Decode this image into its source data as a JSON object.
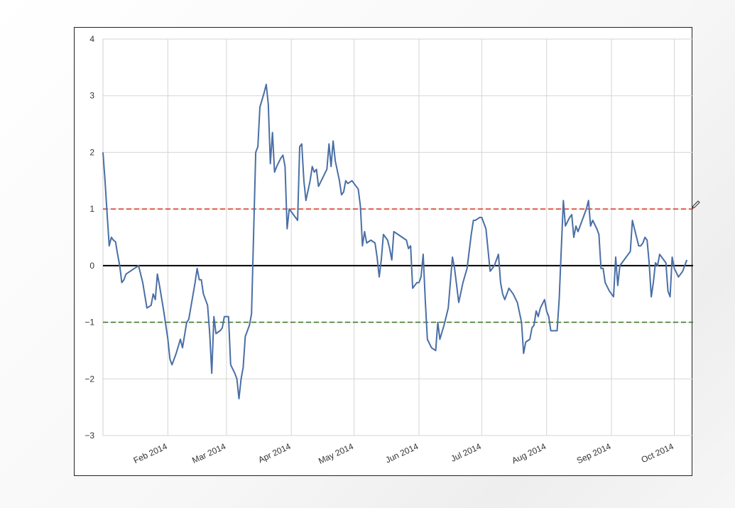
{
  "chart_data": {
    "type": "line",
    "title": "",
    "xlabel": "",
    "ylabel": "",
    "ylim": [
      -3,
      4
    ],
    "xlim": [
      "2014-01-01",
      "2014-10-10"
    ],
    "grid": true,
    "yticks": [
      -3,
      -2,
      -1,
      0,
      1,
      2,
      3,
      4
    ],
    "xticks": [
      {
        "date": "2014-02-01",
        "label": "Feb 2014"
      },
      {
        "date": "2014-03-01",
        "label": "Mar 2014"
      },
      {
        "date": "2014-04-01",
        "label": "Apr 2014"
      },
      {
        "date": "2014-05-01",
        "label": "May 2014"
      },
      {
        "date": "2014-06-01",
        "label": "Jun 2014"
      },
      {
        "date": "2014-07-01",
        "label": "Jul 2014"
      },
      {
        "date": "2014-08-01",
        "label": "Aug 2014"
      },
      {
        "date": "2014-09-01",
        "label": "Sep 2014"
      },
      {
        "date": "2014-10-01",
        "label": "Oct 2014"
      }
    ],
    "reference_lines": [
      {
        "y": 1,
        "color": "#d9402b",
        "style": "dashed"
      },
      {
        "y": 0,
        "color": "#000000",
        "style": "solid"
      },
      {
        "y": -1,
        "color": "#3f7a2a",
        "style": "dashed"
      }
    ],
    "series": [
      {
        "color": "#4a6fa5",
        "points": [
          [
            "2014-01-01",
            2.0
          ],
          [
            "2014-01-02",
            1.5
          ],
          [
            "2014-01-03",
            0.9
          ],
          [
            "2014-01-04",
            0.35
          ],
          [
            "2014-01-05",
            0.5
          ],
          [
            "2014-01-06",
            0.45
          ],
          [
            "2014-01-07",
            0.42
          ],
          [
            "2014-01-08",
            0.2
          ],
          [
            "2014-01-09",
            0.0
          ],
          [
            "2014-01-10",
            -0.3
          ],
          [
            "2014-01-11",
            -0.25
          ],
          [
            "2014-01-12",
            -0.15
          ],
          [
            "2014-01-14",
            -0.1
          ],
          [
            "2014-01-16",
            -0.05
          ],
          [
            "2014-01-18",
            0.0
          ],
          [
            "2014-01-20",
            -0.3
          ],
          [
            "2014-01-22",
            -0.75
          ],
          [
            "2014-01-24",
            -0.7
          ],
          [
            "2014-01-25",
            -0.5
          ],
          [
            "2014-01-26",
            -0.6
          ],
          [
            "2014-01-27",
            -0.15
          ],
          [
            "2014-01-28",
            -0.35
          ],
          [
            "2014-01-30",
            -0.8
          ],
          [
            "2014-02-01",
            -1.3
          ],
          [
            "2014-02-02",
            -1.65
          ],
          [
            "2014-02-03",
            -1.75
          ],
          [
            "2014-02-05",
            -1.55
          ],
          [
            "2014-02-07",
            -1.3
          ],
          [
            "2014-02-08",
            -1.45
          ],
          [
            "2014-02-10",
            -1.0
          ],
          [
            "2014-02-11",
            -0.95
          ],
          [
            "2014-02-14",
            -0.3
          ],
          [
            "2014-02-15",
            -0.05
          ],
          [
            "2014-02-16",
            -0.25
          ],
          [
            "2014-02-17",
            -0.25
          ],
          [
            "2014-02-18",
            -0.5
          ],
          [
            "2014-02-20",
            -0.7
          ],
          [
            "2014-02-21",
            -1.2
          ],
          [
            "2014-02-22",
            -1.9
          ],
          [
            "2014-02-23",
            -0.9
          ],
          [
            "2014-02-24",
            -1.2
          ],
          [
            "2014-02-26",
            -1.15
          ],
          [
            "2014-02-27",
            -1.1
          ],
          [
            "2014-02-28",
            -0.9
          ],
          [
            "2014-03-02",
            -0.9
          ],
          [
            "2014-03-03",
            -1.75
          ],
          [
            "2014-03-05",
            -1.9
          ],
          [
            "2014-03-06",
            -2.0
          ],
          [
            "2014-03-07",
            -2.35
          ],
          [
            "2014-03-08",
            -2.0
          ],
          [
            "2014-03-09",
            -1.8
          ],
          [
            "2014-03-10",
            -1.25
          ],
          [
            "2014-03-12",
            -1.05
          ],
          [
            "2014-03-13",
            -0.85
          ],
          [
            "2014-03-15",
            2.0
          ],
          [
            "2014-03-16",
            2.1
          ],
          [
            "2014-03-17",
            2.8
          ],
          [
            "2014-03-19",
            3.05
          ],
          [
            "2014-03-20",
            3.2
          ],
          [
            "2014-03-21",
            2.85
          ],
          [
            "2014-03-22",
            1.8
          ],
          [
            "2014-03-23",
            2.35
          ],
          [
            "2014-03-24",
            1.65
          ],
          [
            "2014-03-25",
            1.75
          ],
          [
            "2014-03-27",
            1.9
          ],
          [
            "2014-03-28",
            1.95
          ],
          [
            "2014-03-29",
            1.75
          ],
          [
            "2014-03-30",
            0.65
          ],
          [
            "2014-03-31",
            1.0
          ],
          [
            "2014-04-02",
            0.9
          ],
          [
            "2014-04-04",
            0.8
          ],
          [
            "2014-04-05",
            2.1
          ],
          [
            "2014-04-06",
            2.15
          ],
          [
            "2014-04-07",
            1.5
          ],
          [
            "2014-04-08",
            1.15
          ],
          [
            "2014-04-10",
            1.5
          ],
          [
            "2014-04-11",
            1.75
          ],
          [
            "2014-04-12",
            1.65
          ],
          [
            "2014-04-13",
            1.7
          ],
          [
            "2014-04-14",
            1.4
          ],
          [
            "2014-04-16",
            1.55
          ],
          [
            "2014-04-18",
            1.7
          ],
          [
            "2014-04-19",
            2.15
          ],
          [
            "2014-04-20",
            1.75
          ],
          [
            "2014-04-21",
            2.2
          ],
          [
            "2014-04-22",
            1.85
          ],
          [
            "2014-04-24",
            1.5
          ],
          [
            "2014-04-25",
            1.25
          ],
          [
            "2014-04-26",
            1.3
          ],
          [
            "2014-04-27",
            1.5
          ],
          [
            "2014-04-28",
            1.45
          ],
          [
            "2014-04-30",
            1.5
          ],
          [
            "2014-05-01",
            1.45
          ],
          [
            "2014-05-03",
            1.35
          ],
          [
            "2014-05-04",
            1.05
          ],
          [
            "2014-05-05",
            0.35
          ],
          [
            "2014-05-06",
            0.6
          ],
          [
            "2014-05-07",
            0.4
          ],
          [
            "2014-05-09",
            0.45
          ],
          [
            "2014-05-11",
            0.4
          ],
          [
            "2014-05-12",
            0.15
          ],
          [
            "2014-05-13",
            -0.2
          ],
          [
            "2014-05-14",
            0.1
          ],
          [
            "2014-05-15",
            0.55
          ],
          [
            "2014-05-17",
            0.45
          ],
          [
            "2014-05-18",
            0.3
          ],
          [
            "2014-05-19",
            0.1
          ],
          [
            "2014-05-20",
            0.6
          ],
          [
            "2014-05-22",
            0.55
          ],
          [
            "2014-05-24",
            0.5
          ],
          [
            "2014-05-26",
            0.45
          ],
          [
            "2014-05-27",
            0.3
          ],
          [
            "2014-05-28",
            0.35
          ],
          [
            "2014-05-29",
            -0.4
          ],
          [
            "2014-05-31",
            -0.3
          ],
          [
            "2014-06-01",
            -0.3
          ],
          [
            "2014-06-02",
            -0.2
          ],
          [
            "2014-06-03",
            0.2
          ],
          [
            "2014-06-04",
            -0.6
          ],
          [
            "2014-06-05",
            -1.3
          ],
          [
            "2014-06-07",
            -1.45
          ],
          [
            "2014-06-09",
            -1.5
          ],
          [
            "2014-06-10",
            -1.0
          ],
          [
            "2014-06-11",
            -1.3
          ],
          [
            "2014-06-13",
            -1.05
          ],
          [
            "2014-06-15",
            -0.75
          ],
          [
            "2014-06-17",
            0.15
          ],
          [
            "2014-06-18",
            -0.05
          ],
          [
            "2014-06-20",
            -0.65
          ],
          [
            "2014-06-22",
            -0.3
          ],
          [
            "2014-06-24",
            -0.05
          ],
          [
            "2014-06-26",
            0.55
          ],
          [
            "2014-06-27",
            0.8
          ],
          [
            "2014-06-28",
            0.8
          ],
          [
            "2014-06-30",
            0.85
          ],
          [
            "2014-07-01",
            0.85
          ],
          [
            "2014-07-03",
            0.65
          ],
          [
            "2014-07-05",
            -0.1
          ],
          [
            "2014-07-07",
            0.0
          ],
          [
            "2014-07-09",
            0.2
          ],
          [
            "2014-07-10",
            -0.3
          ],
          [
            "2014-07-11",
            -0.5
          ],
          [
            "2014-07-12",
            -0.6
          ],
          [
            "2014-07-14",
            -0.4
          ],
          [
            "2014-07-16",
            -0.5
          ],
          [
            "2014-07-18",
            -0.65
          ],
          [
            "2014-07-20",
            -1.0
          ],
          [
            "2014-07-21",
            -1.55
          ],
          [
            "2014-07-22",
            -1.35
          ],
          [
            "2014-07-24",
            -1.3
          ],
          [
            "2014-07-25",
            -1.1
          ],
          [
            "2014-07-26",
            -1.05
          ],
          [
            "2014-07-27",
            -0.8
          ],
          [
            "2014-07-28",
            -0.9
          ],
          [
            "2014-07-29",
            -0.75
          ],
          [
            "2014-07-31",
            -0.6
          ],
          [
            "2014-08-01",
            -0.8
          ],
          [
            "2014-08-02",
            -0.9
          ],
          [
            "2014-08-03",
            -1.15
          ],
          [
            "2014-08-04",
            -1.15
          ],
          [
            "2014-08-06",
            -1.15
          ],
          [
            "2014-08-07",
            -0.6
          ],
          [
            "2014-08-08",
            0.3
          ],
          [
            "2014-08-09",
            1.15
          ],
          [
            "2014-08-10",
            0.7
          ],
          [
            "2014-08-12",
            0.85
          ],
          [
            "2014-08-13",
            0.9
          ],
          [
            "2014-08-14",
            0.5
          ],
          [
            "2014-08-15",
            0.7
          ],
          [
            "2014-08-16",
            0.6
          ],
          [
            "2014-08-18",
            0.8
          ],
          [
            "2014-08-20",
            1.0
          ],
          [
            "2014-08-21",
            1.15
          ],
          [
            "2014-08-22",
            0.7
          ],
          [
            "2014-08-23",
            0.8
          ],
          [
            "2014-08-25",
            0.65
          ],
          [
            "2014-08-26",
            0.55
          ],
          [
            "2014-08-27",
            -0.05
          ],
          [
            "2014-08-28",
            -0.05
          ],
          [
            "2014-08-29",
            -0.3
          ],
          [
            "2014-08-31",
            -0.45
          ],
          [
            "2014-09-01",
            -0.5
          ],
          [
            "2014-09-02",
            -0.55
          ],
          [
            "2014-09-03",
            0.15
          ],
          [
            "2014-09-04",
            -0.35
          ],
          [
            "2014-09-05",
            0.0
          ],
          [
            "2014-09-07",
            0.1
          ],
          [
            "2014-09-09",
            0.2
          ],
          [
            "2014-09-10",
            0.25
          ],
          [
            "2014-09-11",
            0.8
          ],
          [
            "2014-09-13",
            0.5
          ],
          [
            "2014-09-14",
            0.35
          ],
          [
            "2014-09-15",
            0.35
          ],
          [
            "2014-09-16",
            0.4
          ],
          [
            "2014-09-17",
            0.5
          ],
          [
            "2014-09-18",
            0.45
          ],
          [
            "2014-09-19",
            0.05
          ],
          [
            "2014-09-20",
            -0.55
          ],
          [
            "2014-09-21",
            -0.3
          ],
          [
            "2014-09-22",
            0.05
          ],
          [
            "2014-09-23",
            0.0
          ],
          [
            "2014-09-24",
            0.2
          ],
          [
            "2014-09-26",
            0.1
          ],
          [
            "2014-09-27",
            0.05
          ],
          [
            "2014-09-28",
            -0.45
          ],
          [
            "2014-09-29",
            -0.55
          ],
          [
            "2014-09-30",
            0.15
          ],
          [
            "2014-10-01",
            -0.05
          ],
          [
            "2014-10-03",
            -0.2
          ],
          [
            "2014-10-05",
            -0.1
          ],
          [
            "2014-10-06",
            0.0
          ],
          [
            "2014-10-07",
            0.1
          ]
        ]
      }
    ]
  }
}
